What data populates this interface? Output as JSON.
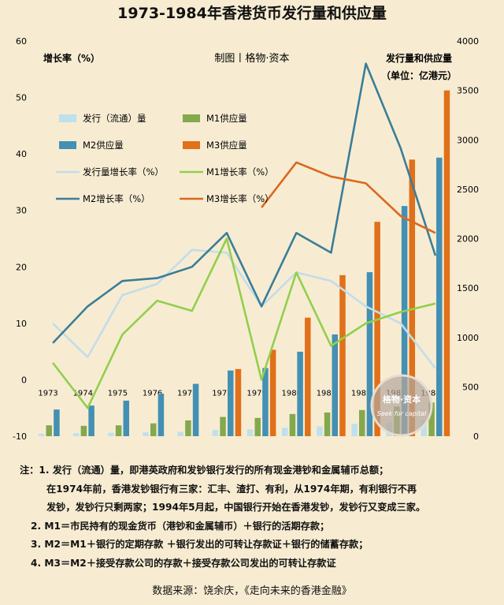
{
  "title": "1973-1984年香港货币发行量和供应量",
  "chart_data": {
    "type": "bar+line",
    "title": "1973-1984年香港货币发行量和供应量",
    "credit": "制图丨格物·资本",
    "left_axis": {
      "label": "增长率（%）",
      "min": -10,
      "max": 60,
      "ticks": [
        "-10",
        "0",
        "10",
        "20",
        "30",
        "40",
        "50",
        "60"
      ]
    },
    "right_axis": {
      "label_line1": "发行量和供应量",
      "label_line2": "（单位：亿港元）",
      "min": 0,
      "max": 4000,
      "ticks": [
        "0",
        "500",
        "1000",
        "1500",
        "2000",
        "2500",
        "3000",
        "3500",
        "4000"
      ]
    },
    "categories": [
      "1973",
      "1974",
      "1975",
      "1976",
      "1977",
      "1978",
      "1979",
      "1980",
      "1981",
      "1982",
      "1983",
      "1984"
    ],
    "bar_series": [
      {
        "name": "发行（流通）量",
        "color": "#bfe0ec",
        "values": [
          25,
          30,
          35,
          40,
          45,
          65,
          70,
          85,
          100,
          125,
          135,
          160
        ]
      },
      {
        "name": "M1供应量",
        "color": "#84a84e",
        "values": [
          110,
          105,
          110,
          130,
          160,
          195,
          185,
          225,
          240,
          265,
          300,
          340
        ]
      },
      {
        "name": "M2供应量",
        "color": "#4390b3",
        "values": [
          270,
          310,
          360,
          430,
          530,
          665,
          690,
          855,
          1030,
          1660,
          2330,
          2820
        ]
      },
      {
        "name": "M3供应量",
        "color": "#e0701a",
        "values": [
          null,
          null,
          null,
          null,
          null,
          680,
          875,
          1200,
          1630,
          2170,
          2800,
          3500
        ]
      }
    ],
    "line_series": [
      {
        "name": "发行量增长率（%）",
        "color": "#c3dde9",
        "values": [
          10,
          4,
          15,
          17,
          23,
          22.5,
          13,
          19,
          17.5,
          13,
          10,
          2
        ]
      },
      {
        "name": "M1增长率（%）",
        "color": "#92cf4c",
        "values": [
          3,
          -5,
          8,
          14,
          12.2,
          25,
          0,
          19,
          6,
          10,
          12,
          13.5
        ]
      },
      {
        "name": "M2增长率（%）",
        "color": "#3b7d98",
        "values": [
          6.5,
          13,
          17.5,
          18,
          20,
          26,
          13,
          26,
          22.5,
          56,
          41,
          22
        ]
      },
      {
        "name": "M3增长率（%）",
        "color": "#d9691f",
        "values": [
          null,
          null,
          null,
          null,
          null,
          null,
          30.5,
          38.5,
          36,
          34.8,
          29,
          26
        ]
      }
    ],
    "grid": false,
    "legend_position": "top-left"
  },
  "notes": {
    "line1": "注：1. 发行（流通）量，即港英政府和发钞银行发行的所有现金港钞和金属辅币总额；",
    "line2": "在1974年前，香港发钞银行有三家：汇丰、渣打、有利，从1974年期，有利银行不再",
    "line3": "发钞，发钞行只剩两家；1994年5月起，中国银行开始在香港发钞，发钞行又变成三家。",
    "line4": "2. M1＝市民持有的现金货币（港钞和金属辅币）＋银行的活期存款；",
    "line5": "3. M2＝M1＋银行的定期存款 ＋银行发出的可转让存款证＋银行的储蓄存款；",
    "line6": "4. M3＝M2＋接受存款公司的存款＋接受存款公司发出的可转让存款证"
  },
  "source": "数据来源：饶余庆，《走向未来的香港金融》",
  "watermark": {
    "text": "格物·资本",
    "subtext": "Seek for capital"
  }
}
